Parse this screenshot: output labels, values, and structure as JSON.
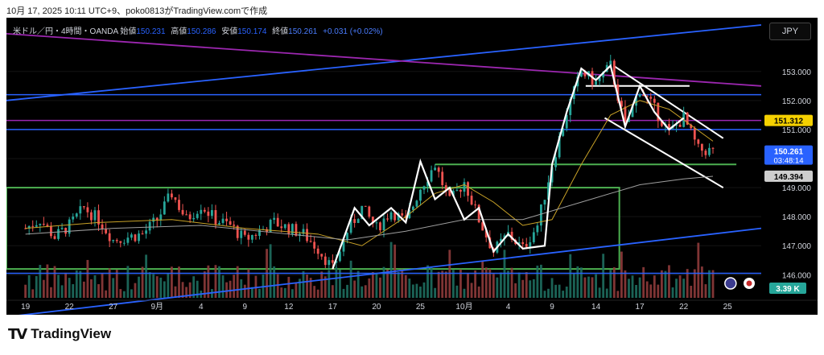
{
  "caption": "10月 17, 2025 10:11 UTC+9、poko0813がTradingView.comで作成",
  "info": {
    "symbol": "米ドル／円・4時間・OANDA",
    "open_label": "始値",
    "open": "150.231",
    "high_label": "高値",
    "high": "150.286",
    "low_label": "安値",
    "low": "150.174",
    "close_label": "終値",
    "close": "150.261",
    "change": "+0.031 (+0.02%)"
  },
  "currency_button": "JPY",
  "logo_text": "TradingView",
  "price_tags": {
    "level": "151.312",
    "last": "150.261",
    "countdown": "03:48:14",
    "ma": "149.394",
    "volume": "3.39 K"
  },
  "colors": {
    "up": "#26a69a",
    "down": "#ef5350",
    "blue_line": "#2962ff",
    "purple_line": "#9c27b0",
    "green_box": "#4caf50",
    "ma_fast": "#c9a227",
    "ma_slow": "#9e9e9e",
    "drawing": "#ffffff",
    "level_tag": "#f5d000",
    "last_tag": "#2962ff"
  },
  "chart_data": {
    "type": "candlestick",
    "y_ticks": [
      146.0,
      147.0,
      148.0,
      149.0,
      150.0,
      151.0,
      152.0,
      153.0
    ],
    "y_tick_labels": [
      "146.000",
      "147.000",
      "148.000",
      "149.000",
      "150.000",
      "151.000",
      "152.000",
      "153.000"
    ],
    "ylim": [
      145.15,
      154.85
    ],
    "x_day_index": [
      0,
      3,
      6,
      9,
      12,
      15,
      18,
      21,
      24,
      27,
      30,
      33,
      36,
      39,
      42,
      45,
      48
    ],
    "x_tick_labels": [
      "19",
      "22",
      "27",
      "9月",
      "4",
      "9",
      "12",
      "17",
      "20",
      "25",
      "10月",
      "4",
      "9",
      "14",
      "17",
      "22",
      "25"
    ],
    "xlim_days": [
      -1.3,
      50.3
    ],
    "close_path": [
      [
        0,
        147.6
      ],
      [
        1,
        147.9
      ],
      [
        2,
        147.3
      ],
      [
        3,
        147.7
      ],
      [
        4,
        148.3
      ],
      [
        5,
        147.9
      ],
      [
        6,
        147.2
      ],
      [
        7,
        147.3
      ],
      [
        8,
        147.4
      ],
      [
        9,
        147.9
      ],
      [
        10,
        148.8
      ],
      [
        11,
        147.9
      ],
      [
        12,
        148.4
      ],
      [
        13,
        147.9
      ],
      [
        14,
        147.7
      ],
      [
        15,
        147.2
      ],
      [
        16,
        147.5
      ],
      [
        17,
        147.8
      ],
      [
        18,
        147.6
      ],
      [
        19,
        147.4
      ],
      [
        20,
        146.9
      ],
      [
        21,
        146.2
      ],
      [
        22,
        147.5
      ],
      [
        23,
        148.3
      ],
      [
        24,
        147.6
      ],
      [
        25,
        148.2
      ],
      [
        26,
        147.8
      ],
      [
        27,
        149.0
      ],
      [
        28,
        149.8
      ],
      [
        29,
        148.5
      ],
      [
        30,
        149.2
      ],
      [
        31,
        147.9
      ],
      [
        32,
        146.8
      ],
      [
        33,
        147.4
      ],
      [
        34,
        146.9
      ],
      [
        35,
        147.7
      ],
      [
        36,
        149.8
      ],
      [
        37,
        151.6
      ],
      [
        38,
        153.0
      ],
      [
        39,
        152.6
      ],
      [
        40,
        153.2
      ],
      [
        41,
        151.1
      ],
      [
        42,
        152.4
      ],
      [
        43,
        151.7
      ],
      [
        44,
        150.9
      ],
      [
        45,
        151.4
      ],
      [
        46,
        150.3
      ],
      [
        47,
        150.26
      ]
    ],
    "indicator_lines": [
      {
        "kind": "moving-average-fast",
        "points": [
          [
            0,
            147.6
          ],
          [
            5,
            147.8
          ],
          [
            10,
            147.9
          ],
          [
            15,
            147.6
          ],
          [
            20,
            147.4
          ],
          [
            23,
            147.0
          ],
          [
            26,
            148.0
          ],
          [
            28,
            148.8
          ],
          [
            30,
            149.1
          ],
          [
            32,
            148.5
          ],
          [
            34,
            147.7
          ],
          [
            36,
            147.9
          ],
          [
            38,
            149.8
          ],
          [
            40,
            151.5
          ],
          [
            42,
            152.0
          ],
          [
            44,
            151.7
          ],
          [
            47,
            150.6
          ]
        ]
      },
      {
        "kind": "moving-average-slow",
        "points": [
          [
            0,
            147.4
          ],
          [
            6,
            147.6
          ],
          [
            12,
            147.7
          ],
          [
            18,
            147.4
          ],
          [
            22,
            147.2
          ],
          [
            26,
            147.5
          ],
          [
            30,
            147.9
          ],
          [
            34,
            147.9
          ],
          [
            38,
            148.5
          ],
          [
            42,
            149.1
          ],
          [
            45,
            149.3
          ],
          [
            47,
            149.39
          ]
        ]
      }
    ],
    "horizontal_levels": [
      {
        "kind": "blue",
        "price": 152.2
      },
      {
        "kind": "blue",
        "price": 151.0
      },
      {
        "kind": "blue",
        "price": 146.05
      },
      {
        "kind": "purple",
        "price": 151.312
      }
    ],
    "trend_lines": [
      {
        "kind": "blue",
        "from": [
          -1.3,
          152.0
        ],
        "to": [
          50.3,
          154.6
        ]
      },
      {
        "kind": "blue",
        "from": [
          -1.3,
          144.55
        ],
        "to": [
          50.3,
          147.6
        ]
      },
      {
        "kind": "purple",
        "from": [
          -1.3,
          154.3
        ],
        "to": [
          50.3,
          152.5
        ]
      },
      {
        "kind": "drawing",
        "from": [
          40.2,
          153.2
        ],
        "to": [
          47.7,
          150.7
        ]
      },
      {
        "kind": "drawing",
        "from": [
          39.6,
          151.4
        ],
        "to": [
          47.7,
          149.0
        ]
      },
      {
        "kind": "drawing",
        "from": [
          38.3,
          152.5
        ],
        "to": [
          45.4,
          152.5
        ]
      }
    ],
    "zones": [
      {
        "kind": "green-box",
        "x": [
          -1.3,
          40.6
        ],
        "y": [
          146.2,
          149.0
        ]
      },
      {
        "kind": "green-line",
        "x": [
          28.0,
          48.6
        ],
        "y": [
          149.8,
          149.8
        ]
      }
    ],
    "volume_max_k": 3.39
  }
}
